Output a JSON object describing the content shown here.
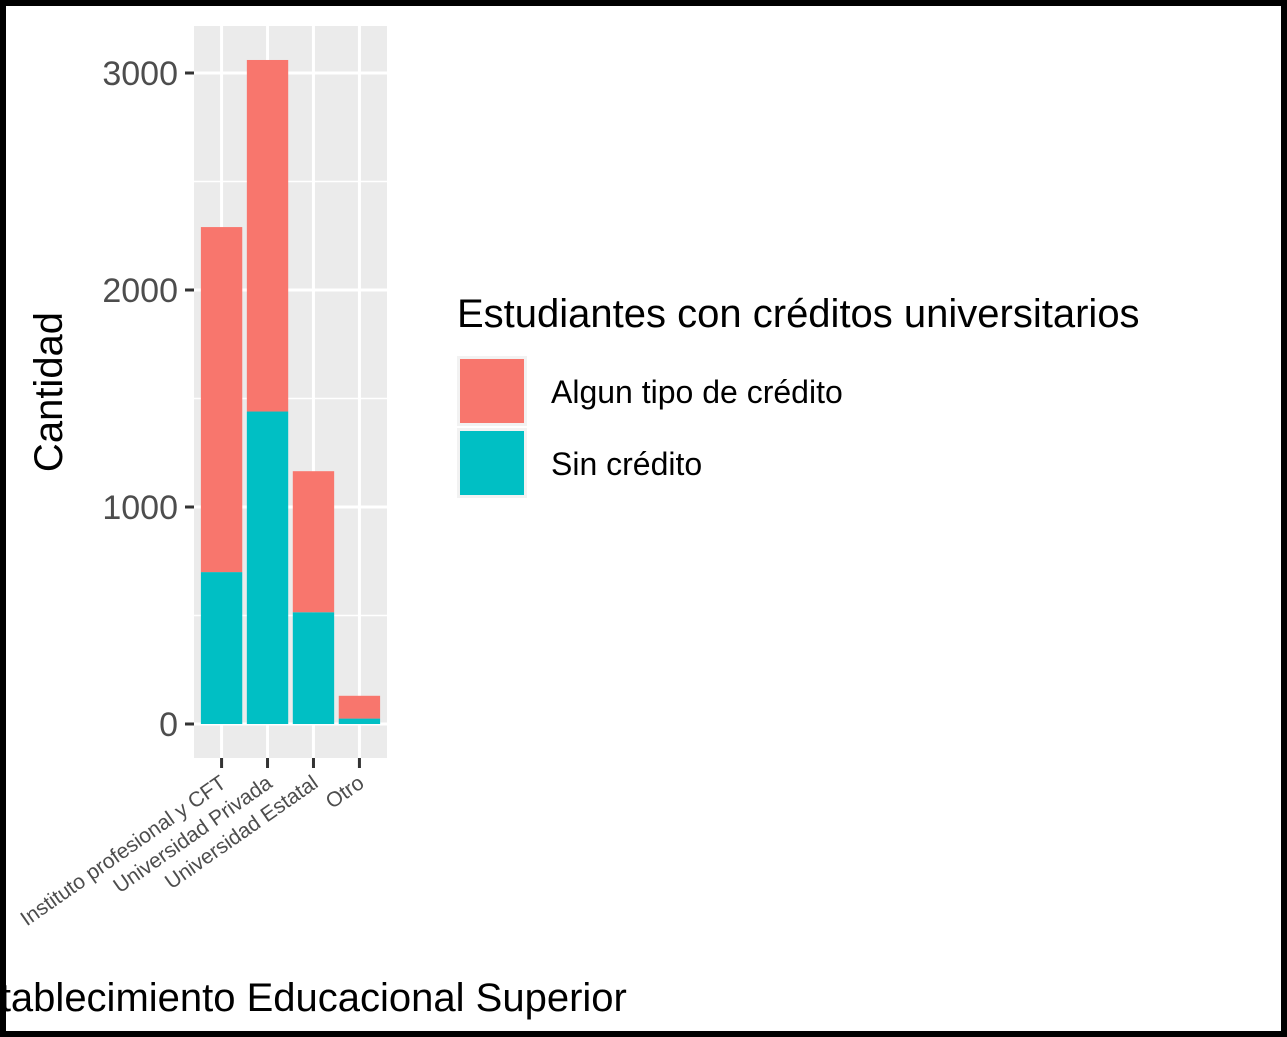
{
  "chart_data": {
    "type": "bar",
    "stacked": true,
    "categories": [
      "Instituto profesional y CFT",
      "Universidad Privada",
      "Universidad Estatal",
      "Otro"
    ],
    "series": [
      {
        "name": "Algun tipo de crédito",
        "color": "#f8766d",
        "values": [
          1590,
          1620,
          650,
          105
        ]
      },
      {
        "name": "Sin crédito",
        "color": "#00bfc4",
        "values": [
          700,
          1440,
          515,
          25
        ]
      }
    ],
    "xlabel": "Establecimiento Educacional Superior",
    "ylabel": "Cantidad",
    "ylim": [
      0,
      3150
    ],
    "yticks": [
      0,
      1000,
      2000,
      3000
    ],
    "ytick_labels": [
      "0",
      "1000",
      "2000",
      "3000"
    ],
    "grid": true,
    "legend": {
      "title": "Estudiantes con créditos universitarios",
      "placement": "right"
    },
    "panel_background": "#ebebeb"
  }
}
